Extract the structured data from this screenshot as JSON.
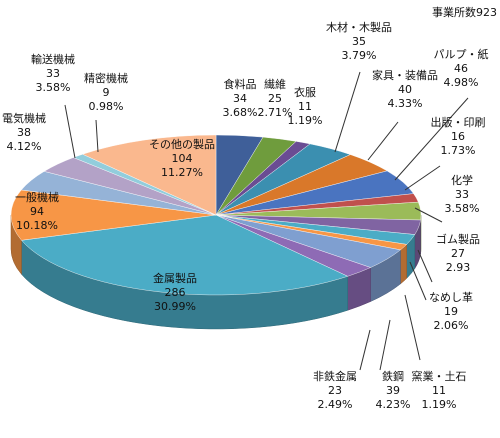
{
  "chart_data": {
    "type": "pie",
    "style": "3d",
    "total_label": "事業所数923",
    "slices": [
      {
        "name": "食料品",
        "value": 34,
        "percent": "3.68%",
        "color": "#3F5F99"
      },
      {
        "name": "繊維",
        "value": 25,
        "percent": "2.71%",
        "color": "#6F9C3D"
      },
      {
        "name": "衣服",
        "value": 11,
        "percent": "1.19%",
        "color": "#6A4C93"
      },
      {
        "name": "木材・木製品",
        "value": 35,
        "percent": "3.79%",
        "color": "#3B8FB0"
      },
      {
        "name": "家具・装備品",
        "value": 40,
        "percent": "4.33%",
        "color": "#D9782A"
      },
      {
        "name": "パルプ・紙",
        "value": 46,
        "percent": "4.98%",
        "color": "#4A74C0"
      },
      {
        "name": "出版・印刷",
        "value": 16,
        "percent": "1.73%",
        "color": "#C0504D"
      },
      {
        "name": "化学",
        "value": 33,
        "percent": "3.58%",
        "color": "#9BBB59"
      },
      {
        "name": "ゴム製品",
        "value": 27,
        "percent": "2.93",
        "color": "#8064A2"
      },
      {
        "name": "なめし革",
        "value": 19,
        "percent": "2.06%",
        "color": "#4BACC6"
      },
      {
        "name": "窯業・土石",
        "value": 11,
        "percent": "1.19%",
        "color": "#F79646"
      },
      {
        "name": "鉄鋼",
        "value": 39,
        "percent": "4.23%",
        "color": "#7F9FD0"
      },
      {
        "name": "非鉄金属",
        "value": 23,
        "percent": "2.49%",
        "color": "#8E6BB5"
      },
      {
        "name": "金属製品",
        "value": 286,
        "percent": "30.99%",
        "color": "#4BACC6"
      },
      {
        "name": "一般機械",
        "value": 94,
        "percent": "10.18%",
        "color": "#F79646"
      },
      {
        "name": "電気機械",
        "value": 38,
        "percent": "4.12%",
        "color": "#95B3D7"
      },
      {
        "name": "輸送機械",
        "value": 33,
        "percent": "3.58%",
        "color": "#B3A2C7"
      },
      {
        "name": "精密機械",
        "value": 9,
        "percent": "0.98%",
        "color": "#92CDDC"
      },
      {
        "name": "その他の製品",
        "value": 104,
        "percent": "11.27%",
        "color": "#FAB88E"
      }
    ]
  }
}
